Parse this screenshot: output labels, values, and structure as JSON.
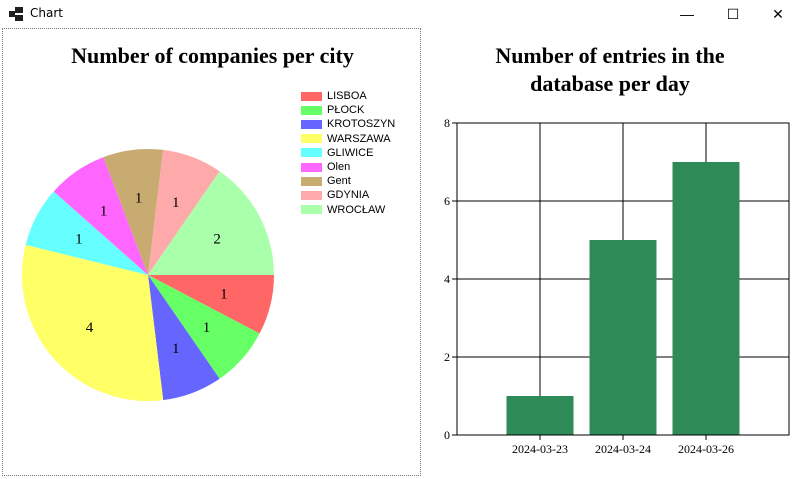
{
  "window": {
    "title": "Chart",
    "minimize_glyph": "—",
    "maximize_glyph": "☐",
    "close_glyph": "✕"
  },
  "chart_data": [
    {
      "type": "pie",
      "title": "Number of companies per city",
      "categories": [
        "LISBOA",
        "PŁOCK",
        "KROTOSZYN",
        "WARSZAWA",
        "GLIWICE",
        "Olen",
        "Gent",
        "GDYNIA",
        "WROCŁAW"
      ],
      "values": [
        1,
        1,
        1,
        4,
        1,
        1,
        1,
        1,
        2
      ],
      "colors": [
        "#ff6666",
        "#66ff66",
        "#6666ff",
        "#ffff66",
        "#66ffff",
        "#ff66ff",
        "#c8ab71",
        "#ffaaaa",
        "#aaffaa"
      ],
      "legend_position": "top-right"
    },
    {
      "type": "bar",
      "title": "Number of entries in the database per day",
      "categories": [
        "2024-03-23",
        "2024-03-24",
        "2024-03-26"
      ],
      "values": [
        1,
        5,
        7
      ],
      "ylim": [
        0,
        8
      ],
      "yticks": [
        0,
        2,
        4,
        6,
        8
      ],
      "color": "#2e8b57",
      "grid": true,
      "xlabel": "",
      "ylabel": ""
    }
  ]
}
